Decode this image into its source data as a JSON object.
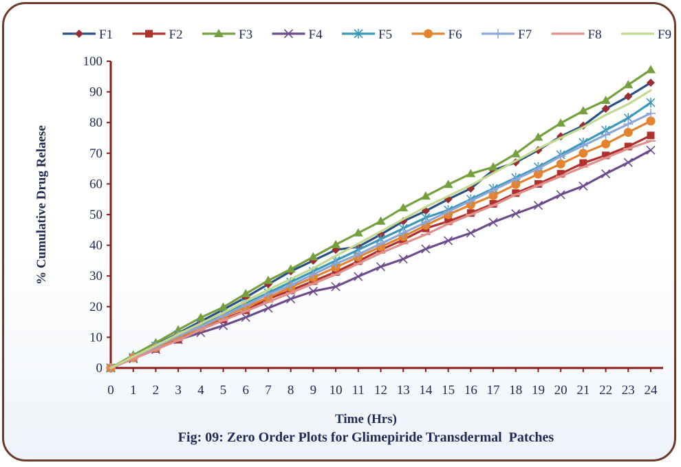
{
  "chart_data": {
    "type": "line",
    "title": "Fig: 09: Zero Order Plots for Glimepiride Transdermal  Patches",
    "xlabel": "Time  (Hrs)",
    "ylabel": "% Cumulative Drug Relaese",
    "xlim": [
      0,
      24
    ],
    "ylim": [
      0,
      100
    ],
    "yticks": [
      0,
      10,
      20,
      30,
      40,
      50,
      60,
      70,
      80,
      90,
      100
    ],
    "x": [
      0,
      1,
      2,
      3,
      4,
      5,
      6,
      7,
      8,
      9,
      10,
      11,
      12,
      13,
      14,
      15,
      16,
      17,
      18,
      19,
      20,
      21,
      22,
      23,
      24
    ],
    "grid": false,
    "legend_position": "top",
    "series": [
      {
        "name": "F1",
        "color": "#2a4f87",
        "marker": "diamond",
        "markerColor": "#9b2d30",
        "values": [
          0,
          3.8,
          7.5,
          11.3,
          15.2,
          19.0,
          23.0,
          27.3,
          31.5,
          35.0,
          38.5,
          39.5,
          43.5,
          47.8,
          51.2,
          55.0,
          58.5,
          64.5,
          67.0,
          71.0,
          75.5,
          79.0,
          84.5,
          88.5,
          93.0
        ]
      },
      {
        "name": "F2",
        "color": "#b0302e",
        "marker": "square",
        "markerColor": "#b0302e",
        "values": [
          0,
          3.3,
          6.2,
          9.2,
          12.8,
          15.8,
          18.8,
          22.5,
          25.3,
          28.3,
          31.3,
          34.8,
          38.5,
          41.8,
          45.5,
          47.8,
          50.5,
          53.5,
          57.0,
          60.0,
          63.3,
          66.8,
          69.3,
          72.2,
          75.8
        ]
      },
      {
        "name": "F3",
        "color": "#76a03e",
        "marker": "triangle",
        "markerColor": "#76a03e",
        "values": [
          0,
          4.2,
          8.2,
          12.4,
          16.4,
          19.8,
          24.2,
          28.5,
          32.2,
          36.2,
          40.2,
          44.0,
          47.8,
          52.2,
          56.0,
          59.8,
          63.3,
          65.5,
          69.8,
          75.2,
          79.8,
          83.8,
          87.2,
          92.3,
          97.2
        ]
      },
      {
        "name": "F4",
        "color": "#6b4b8c",
        "marker": "x",
        "markerColor": "#6b4b8c",
        "values": [
          0,
          3.0,
          6.0,
          9.2,
          11.5,
          13.8,
          16.5,
          19.5,
          22.5,
          25.0,
          26.5,
          29.8,
          33.0,
          35.5,
          38.8,
          41.5,
          44.0,
          47.5,
          50.3,
          53.0,
          56.5,
          59.3,
          63.3,
          67.0,
          71.0
        ]
      },
      {
        "name": "F5",
        "color": "#3a99b8",
        "marker": "star",
        "markerColor": "#3a99b8",
        "values": [
          0,
          3.5,
          7.2,
          10.8,
          14.2,
          17.5,
          21.0,
          24.5,
          28.0,
          31.5,
          35.0,
          38.5,
          42.0,
          45.5,
          49.0,
          51.5,
          55.0,
          58.5,
          62.0,
          65.5,
          69.5,
          73.5,
          77.5,
          81.5,
          86.5
        ]
      },
      {
        "name": "F6",
        "color": "#e3832e",
        "marker": "circle",
        "markerColor": "#e3832e",
        "values": [
          0,
          3.3,
          6.6,
          10.0,
          13.2,
          16.6,
          19.8,
          23.0,
          26.3,
          29.5,
          32.8,
          36.2,
          39.5,
          42.8,
          46.5,
          50.0,
          53.2,
          56.2,
          59.8,
          63.2,
          66.5,
          70.0,
          73.0,
          76.8,
          80.5
        ]
      },
      {
        "name": "F7",
        "color": "#8aa7d8",
        "marker": "plus",
        "markerColor": "#8aa7d8",
        "values": [
          0,
          3.5,
          7.0,
          10.5,
          13.5,
          17.0,
          20.5,
          24.0,
          27.0,
          30.5,
          34.0,
          37.0,
          40.5,
          44.0,
          47.5,
          51.0,
          54.5,
          58.0,
          61.5,
          65.0,
          69.0,
          72.5,
          76.0,
          79.5,
          83.0
        ]
      },
      {
        "name": "F8",
        "color": "#e0908c",
        "marker": "dash",
        "markerColor": "#e0908c",
        "values": [
          0,
          3.0,
          6.0,
          9.0,
          12.5,
          15.5,
          18.5,
          21.5,
          24.5,
          27.5,
          30.5,
          34.0,
          37.5,
          40.5,
          43.5,
          47.0,
          50.0,
          53.0,
          56.5,
          59.5,
          62.5,
          65.5,
          68.5,
          71.5,
          74.0
        ]
      },
      {
        "name": "F9",
        "color": "#c3d98f",
        "marker": "none",
        "markerColor": "#c3d98f",
        "values": [
          0,
          3.7,
          7.3,
          11.0,
          14.5,
          18.0,
          21.8,
          25.5,
          29.0,
          32.5,
          36.5,
          40.5,
          44.5,
          48.5,
          52.5,
          56.0,
          59.5,
          63.5,
          67.5,
          71.5,
          75.0,
          78.5,
          82.5,
          86.0,
          90.5
        ]
      }
    ]
  }
}
